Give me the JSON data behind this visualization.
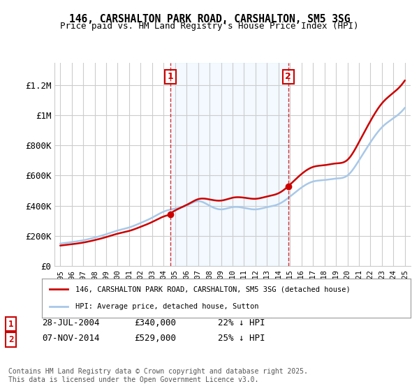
{
  "title": "146, CARSHALTON PARK ROAD, CARSHALTON, SM5 3SG",
  "subtitle": "Price paid vs. HM Land Registry's House Price Index (HPI)",
  "sale1_date": "28-JUL-2004",
  "sale1_price": 340000,
  "sale1_label": "22% ↓ HPI",
  "sale2_date": "07-NOV-2014",
  "sale2_price": 529000,
  "sale2_label": "25% ↓ HPI",
  "legend_line1": "146, CARSHALTON PARK ROAD, CARSHALTON, SM5 3SG (detached house)",
  "legend_line2": "HPI: Average price, detached house, Sutton",
  "footer": "Contains HM Land Registry data © Crown copyright and database right 2025.\nThis data is licensed under the Open Government Licence v3.0.",
  "hpi_color": "#a8c8e8",
  "sale_color": "#cc0000",
  "marker1_x": 2004.57,
  "marker1_y": 340000,
  "marker2_x": 2014.85,
  "marker2_y": 529000,
  "vline1_x": 2004.57,
  "vline2_x": 2014.85,
  "ylim": [
    0,
    1350000
  ],
  "xlim": [
    1994.5,
    2025.5
  ],
  "yticks": [
    0,
    200000,
    400000,
    600000,
    800000,
    1000000,
    1200000
  ],
  "ytick_labels": [
    "£0",
    "£200K",
    "£400K",
    "£600K",
    "£800K",
    "£1M",
    "£1.2M"
  ],
  "xticks": [
    1995,
    1996,
    1997,
    1998,
    1999,
    2000,
    2001,
    2002,
    2003,
    2004,
    2005,
    2006,
    2007,
    2008,
    2009,
    2010,
    2011,
    2012,
    2013,
    2014,
    2015,
    2016,
    2017,
    2018,
    2019,
    2020,
    2021,
    2022,
    2023,
    2024,
    2025
  ],
  "background_color": "#ffffff",
  "plot_bg_color": "#ffffff",
  "grid_color": "#cccccc",
  "shade_color": "#ddeeff"
}
